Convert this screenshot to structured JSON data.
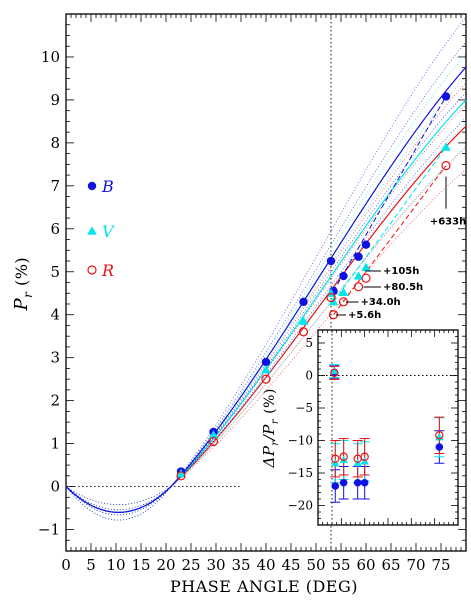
{
  "chart_data": [
    {
      "type": "line",
      "xlabel": "PHASE ANGLE (DEG)",
      "ylabel": "P_r (%)",
      "ylabel_parts": {
        "main": "P",
        "sub": "r",
        "rest": "(%)"
      },
      "xlim": [
        0,
        80
      ],
      "ylim": [
        -1.5,
        11
      ],
      "xticks": [
        0,
        5,
        10,
        15,
        20,
        25,
        30,
        35,
        40,
        45,
        50,
        55,
        60,
        65,
        70,
        75
      ],
      "yticks": [
        -1,
        0,
        1,
        2,
        3,
        4,
        5,
        6,
        7,
        8,
        9,
        10
      ],
      "vline_x": 53,
      "hline_y0_range": [
        0,
        35
      ],
      "colors": {
        "B": "#1010e0",
        "V": "#00e5ee",
        "R": "#ee1111"
      },
      "legend": {
        "position": "left-middle",
        "entries": [
          "B",
          "V",
          "R"
        ]
      },
      "series": [
        {
          "name": "B",
          "marker": "filled-circle",
          "points": [
            [
              23,
              0.35
            ],
            [
              29.5,
              1.27
            ],
            [
              40,
              2.9
            ],
            [
              47.5,
              4.3
            ],
            [
              53,
              5.25
            ],
            [
              53.5,
              4.55
            ],
            [
              55.5,
              4.9
            ],
            [
              58.5,
              5.35
            ],
            [
              60,
              5.63
            ],
            [
              76,
              9.08
            ]
          ]
        },
        {
          "name": "V",
          "marker": "filled-triangle",
          "points": [
            [
              23,
              0.3
            ],
            [
              29.5,
              1.2
            ],
            [
              40,
              2.72
            ],
            [
              47.5,
              3.85
            ],
            [
              53,
              4.5
            ],
            [
              53.5,
              4.3
            ],
            [
              55.5,
              4.52
            ],
            [
              58.5,
              4.9
            ],
            [
              60,
              5.1
            ],
            [
              76,
              7.9
            ]
          ]
        },
        {
          "name": "R",
          "marker": "open-circle",
          "points": [
            [
              23,
              0.25
            ],
            [
              29.5,
              1.05
            ],
            [
              40,
              2.5
            ],
            [
              47.5,
              3.6
            ],
            [
              53,
              4.4
            ],
            [
              53.5,
              4.0
            ],
            [
              55.5,
              4.3
            ],
            [
              58.5,
              4.65
            ],
            [
              60,
              4.85
            ],
            [
              76,
              7.47
            ]
          ]
        }
      ],
      "annotations": [
        "+633h",
        "+105h",
        "+80.5h",
        "+34.0h",
        "+5.6h"
      ]
    },
    {
      "type": "scatter",
      "inset": true,
      "xlabel": "",
      "ylabel": "ΔP_r/P_r (%)",
      "ylabel_parts": {
        "main": "ΔP",
        "sub": "r",
        "mid": "/P",
        "sub2": "r",
        "rest": "(%)"
      },
      "xlim": [
        50,
        80
      ],
      "ylim": [
        -23,
        7
      ],
      "yticks": [
        -20,
        -15,
        -10,
        -5,
        0,
        5
      ],
      "hline_y": 0,
      "vline_x": 53,
      "series": [
        {
          "name": "B",
          "points": [
            [
              53.5,
              0.5
            ],
            [
              53.7,
              -17
            ],
            [
              55.5,
              -16.5
            ],
            [
              58.5,
              -16.5
            ],
            [
              60,
              -16.5
            ],
            [
              76,
              -11
            ]
          ],
          "errors": [
            1,
            2.5,
            2.5,
            2.5,
            2.5,
            2.5
          ]
        },
        {
          "name": "V",
          "points": [
            [
              53.5,
              0.7
            ],
            [
              53.7,
              -13.5
            ],
            [
              55.5,
              -13
            ],
            [
              58.5,
              -13.5
            ],
            [
              60,
              -13.2
            ],
            [
              76,
              -9.5
            ]
          ],
          "errors": [
            1,
            3,
            3,
            3,
            3,
            3
          ]
        },
        {
          "name": "R",
          "points": [
            [
              53.5,
              0.4
            ],
            [
              53.7,
              -12.8
            ],
            [
              55.5,
              -12.5
            ],
            [
              58.5,
              -12.8
            ],
            [
              60,
              -12.5
            ],
            [
              76,
              -9.2
            ]
          ],
          "errors": [
            1,
            2.8,
            2.8,
            2.8,
            2.8,
            2.8
          ]
        }
      ]
    }
  ]
}
